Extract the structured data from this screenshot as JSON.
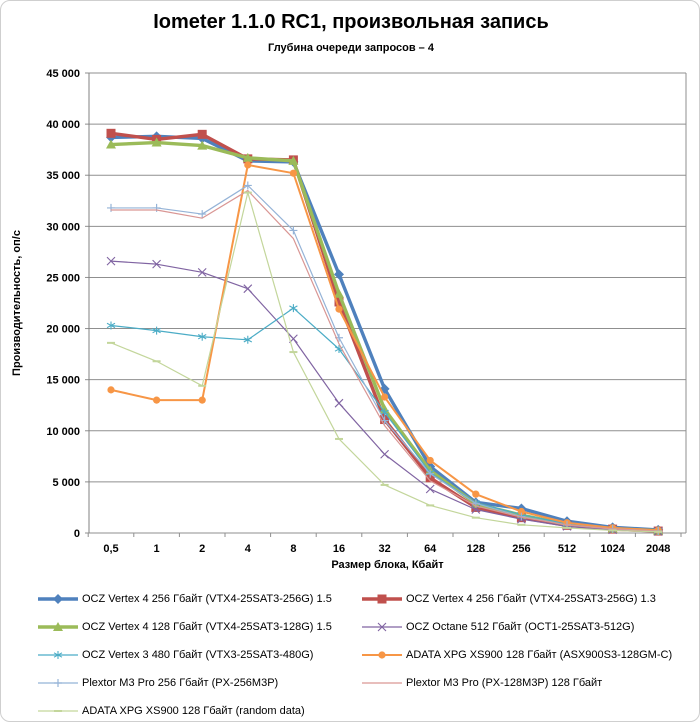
{
  "chart_data": {
    "type": "line",
    "title": "Iometer 1.1.0 RC1, произвольная запись",
    "subtitle": "Глубина очереди запросов – 4",
    "xlabel": "Размер блока, Кбайт",
    "ylabel": "Производительность, оп/с",
    "categories": [
      "0,5",
      "1",
      "2",
      "4",
      "8",
      "16",
      "32",
      "64",
      "128",
      "256",
      "512",
      "1024",
      "2048"
    ],
    "ylim": [
      0,
      45000
    ],
    "ytick_step": 5000,
    "grid": "horizontal",
    "legend_position": "bottom",
    "series": [
      {
        "name": "OCZ Vertex 4 256 Гбайт (VTX4-25SAT3-256G) 1.5",
        "color": "#4F81BD",
        "marker": "diamond",
        "line_width": 3.4,
        "values": [
          38700,
          38800,
          38600,
          36400,
          36300,
          25300,
          14100,
          6500,
          3000,
          2400,
          1150,
          550,
          300
        ]
      },
      {
        "name": "OCZ Vertex 4 256 Гбайт (VTX4-25SAT3-256G) 1.3",
        "color": "#C0504D",
        "marker": "square",
        "line_width": 3.4,
        "values": [
          39100,
          38500,
          39000,
          36600,
          36500,
          22600,
          11100,
          5400,
          2500,
          1500,
          750,
          380,
          190
        ]
      },
      {
        "name": "OCZ Vertex 4 128 Гбайт (VTX4-25SAT3-128G) 1.5",
        "color": "#9BBB59",
        "marker": "triangle",
        "line_width": 3.4,
        "values": [
          38000,
          38200,
          37900,
          36700,
          36400,
          23400,
          12100,
          6100,
          2850,
          1750,
          850,
          420,
          220
        ]
      },
      {
        "name": "OCZ Octane 512 Гбайт (OCT1-25SAT3-512G)",
        "color": "#8064A2",
        "marker": "x",
        "line_width": 1.2,
        "values": [
          26600,
          26300,
          25500,
          23900,
          19000,
          12700,
          7700,
          4300,
          2300,
          1350,
          650,
          320,
          160
        ]
      },
      {
        "name": "OCZ Vertex 3 480 Гбайт (VTX3-25SAT3-480G)",
        "color": "#4BACC6",
        "marker": "asterisk",
        "line_width": 1.2,
        "values": [
          20300,
          19800,
          19200,
          18900,
          22000,
          18000,
          11800,
          5900,
          2950,
          1800,
          900,
          450,
          230
        ]
      },
      {
        "name": "ADATA XPG XS900 128 Гбайт (ASX900S3-128GM-C)",
        "color": "#F79646",
        "marker": "circle",
        "line_width": 2,
        "values": [
          14000,
          13000,
          13000,
          36000,
          35200,
          21900,
          13300,
          7100,
          3800,
          2100,
          1000,
          500,
          270
        ]
      },
      {
        "name": "Plextor M3 Pro 256 Гбайт (PX-256M3P)",
        "color": "#95B3D7",
        "marker": "plus",
        "line_width": 1.2,
        "values": [
          31800,
          31800,
          31200,
          34000,
          29600,
          19100,
          11000,
          5800,
          2900,
          1600,
          800,
          400,
          200
        ]
      },
      {
        "name": "Plextor M3 Pro (PX-128M3P) 128 Гбайт",
        "color": "#D99694",
        "marker": "none",
        "line_width": 1.2,
        "values": [
          31600,
          31600,
          30800,
          33500,
          28800,
          18500,
          10500,
          5100,
          2650,
          1550,
          780,
          390,
          195
        ]
      },
      {
        "name": "ADATA XPG XS900 128 Гбайт (random data)",
        "color": "#C3D69B",
        "marker": "dash",
        "line_width": 1.2,
        "values": [
          18600,
          16800,
          14400,
          33300,
          17700,
          9200,
          4700,
          2700,
          1500,
          800,
          500,
          250,
          120
        ]
      }
    ],
    "colors": {
      "gridline": "#8F8F8F",
      "axis": "#808080",
      "tick_label": "#000000",
      "frame_border": "#CFCFCF"
    }
  }
}
